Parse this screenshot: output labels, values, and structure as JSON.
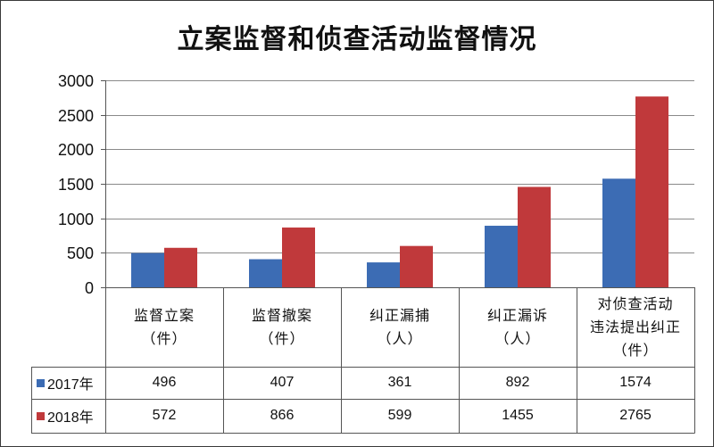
{
  "chart_data": {
    "type": "bar",
    "title": "立案监督和侦查活动监督情况",
    "xlabel": "",
    "ylabel": "",
    "categories": [
      "监督立案\n（件）",
      "监督撤案\n（件）",
      "纠正漏捕\n（人）",
      "纠正漏诉\n（人）",
      "对侦查活动\n违法提出纠正\n（件）"
    ],
    "ylim": [
      0,
      3000
    ],
    "yticks": [
      0,
      500,
      1000,
      1500,
      2000,
      2500,
      3000
    ],
    "grid": true,
    "legend": "bottom-left",
    "data_table": true,
    "series": [
      {
        "name": "2017年",
        "color": "#3c6cb4",
        "values": [
          496,
          407,
          361,
          892,
          1574
        ]
      },
      {
        "name": "2018年",
        "color": "#c0393b",
        "values": [
          572,
          866,
          599,
          1455,
          2765
        ]
      }
    ]
  }
}
